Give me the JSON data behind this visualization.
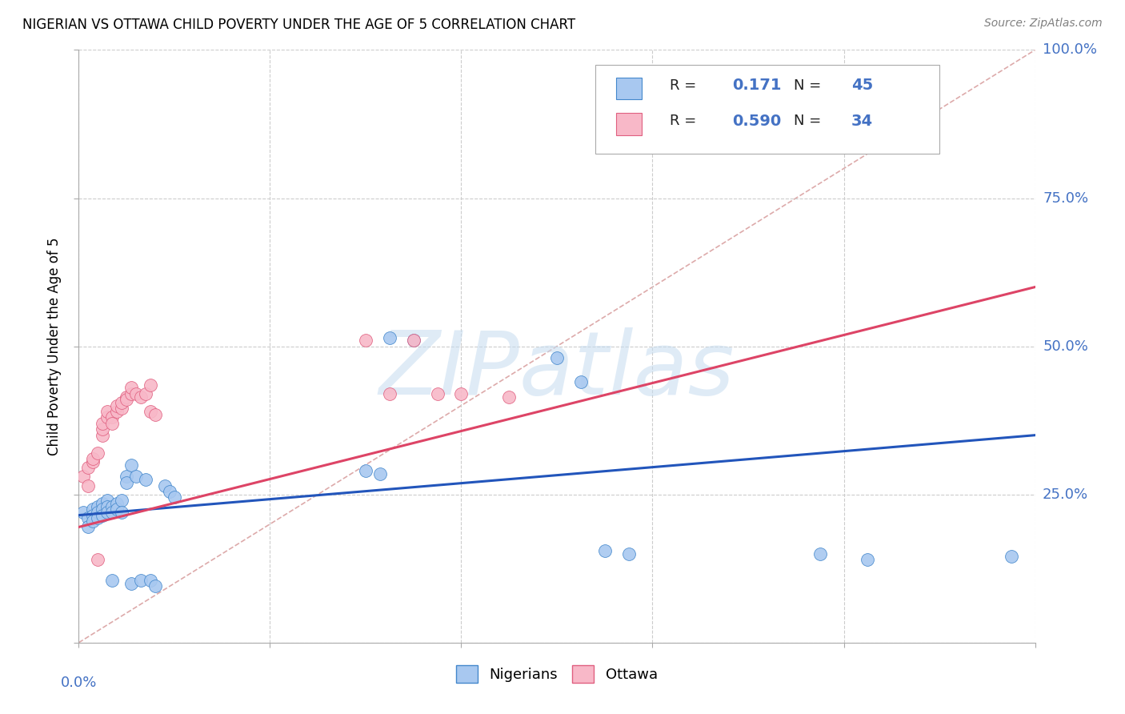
{
  "title": "NIGERIAN VS OTTAWA CHILD POVERTY UNDER THE AGE OF 5 CORRELATION CHART",
  "source": "Source: ZipAtlas.com",
  "ylabel": "Child Poverty Under the Age of 5",
  "xmin": 0.0,
  "xmax": 0.2,
  "ymin": 0.0,
  "ymax": 1.0,
  "nigerians_R": "0.171",
  "nigerians_N": "45",
  "ottawa_R": "0.590",
  "ottawa_N": "34",
  "blue_fill": "#a8c8f0",
  "pink_fill": "#f8b8c8",
  "blue_edge": "#4488cc",
  "pink_edge": "#e06080",
  "blue_line": "#2255bb",
  "pink_line": "#dd4466",
  "diag_color": "#ddaaaa",
  "grid_color": "#cccccc",
  "axis_blue": "#4472c4",
  "watermark": "ZIPatlas",
  "nigerians_x": [
    0.001,
    0.002,
    0.002,
    0.003,
    0.003,
    0.003,
    0.004,
    0.004,
    0.004,
    0.005,
    0.005,
    0.005,
    0.006,
    0.006,
    0.006,
    0.007,
    0.007,
    0.007,
    0.008,
    0.008,
    0.009,
    0.009,
    0.01,
    0.01,
    0.011,
    0.011,
    0.012,
    0.013,
    0.014,
    0.015,
    0.016,
    0.018,
    0.019,
    0.02,
    0.06,
    0.063,
    0.065,
    0.07,
    0.1,
    0.105,
    0.11,
    0.115,
    0.155,
    0.165,
    0.195
  ],
  "nigerians_y": [
    0.22,
    0.21,
    0.195,
    0.225,
    0.215,
    0.205,
    0.23,
    0.22,
    0.21,
    0.235,
    0.225,
    0.215,
    0.24,
    0.23,
    0.22,
    0.23,
    0.22,
    0.105,
    0.235,
    0.225,
    0.24,
    0.22,
    0.28,
    0.27,
    0.3,
    0.1,
    0.28,
    0.105,
    0.275,
    0.105,
    0.095,
    0.265,
    0.255,
    0.245,
    0.29,
    0.285,
    0.515,
    0.51,
    0.48,
    0.44,
    0.155,
    0.15,
    0.15,
    0.14,
    0.145
  ],
  "ottawa_x": [
    0.001,
    0.002,
    0.002,
    0.003,
    0.003,
    0.004,
    0.004,
    0.005,
    0.005,
    0.005,
    0.006,
    0.006,
    0.007,
    0.007,
    0.008,
    0.008,
    0.009,
    0.009,
    0.01,
    0.01,
    0.011,
    0.011,
    0.012,
    0.013,
    0.014,
    0.015,
    0.015,
    0.016,
    0.06,
    0.065,
    0.07,
    0.075,
    0.08,
    0.09
  ],
  "ottawa_y": [
    0.28,
    0.295,
    0.265,
    0.305,
    0.31,
    0.14,
    0.32,
    0.35,
    0.36,
    0.37,
    0.38,
    0.39,
    0.38,
    0.37,
    0.39,
    0.4,
    0.395,
    0.405,
    0.415,
    0.41,
    0.42,
    0.43,
    0.42,
    0.415,
    0.42,
    0.435,
    0.39,
    0.385,
    0.51,
    0.42,
    0.51,
    0.42,
    0.42,
    0.415
  ]
}
